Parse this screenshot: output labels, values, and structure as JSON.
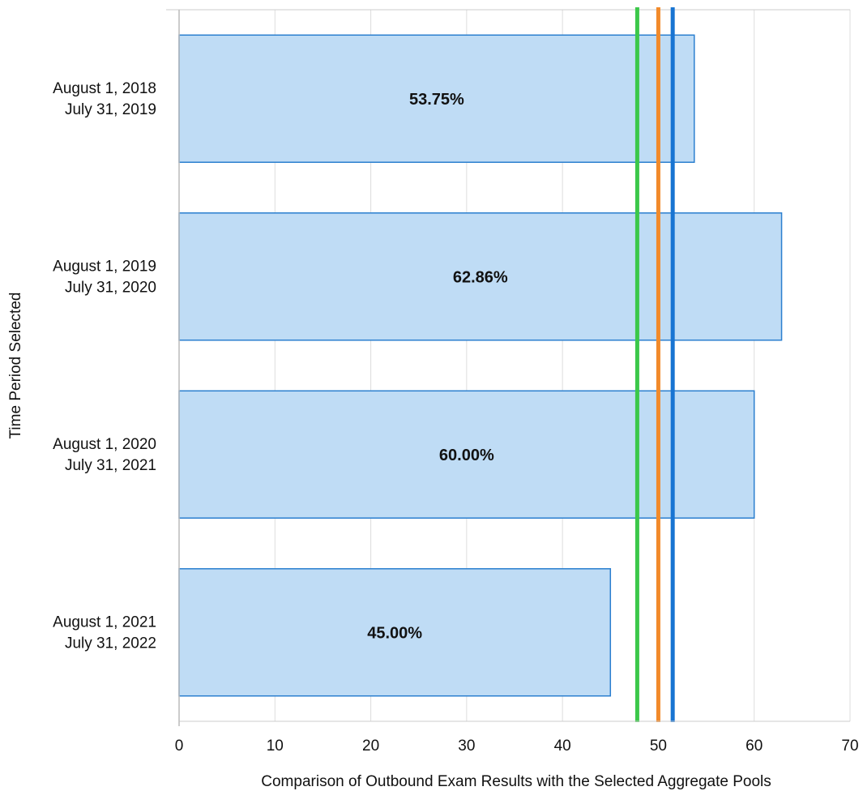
{
  "chart_data": {
    "type": "bar",
    "orientation": "horizontal",
    "categories": [
      [
        "August 1, 2018",
        "July 31, 2019"
      ],
      [
        "August 1, 2019",
        "July 31, 2020"
      ],
      [
        "August 1, 2020",
        "July 31, 2021"
      ],
      [
        "August 1, 2021",
        "July 31, 2022"
      ]
    ],
    "values": [
      53.75,
      62.86,
      60.0,
      45.0
    ],
    "value_labels": [
      "53.75%",
      "62.86%",
      "60.00%",
      "45.00%"
    ],
    "reference_lines": [
      {
        "value": 47.8,
        "color": "#3cc84a"
      },
      {
        "value": 50.0,
        "color": "#f28a2a"
      },
      {
        "value": 51.5,
        "color": "#1874d2"
      }
    ],
    "xlabel": "Comparison of Outbound Exam Results with the Selected Aggregate Pools",
    "ylabel": "Time Period Selected",
    "xlim": [
      0,
      70
    ],
    "xticks": [
      0,
      10,
      20,
      30,
      40,
      50,
      60,
      70
    ],
    "grid": true,
    "bar_fill": "#bfdcf5",
    "bar_stroke": "#2b7fcf"
  }
}
